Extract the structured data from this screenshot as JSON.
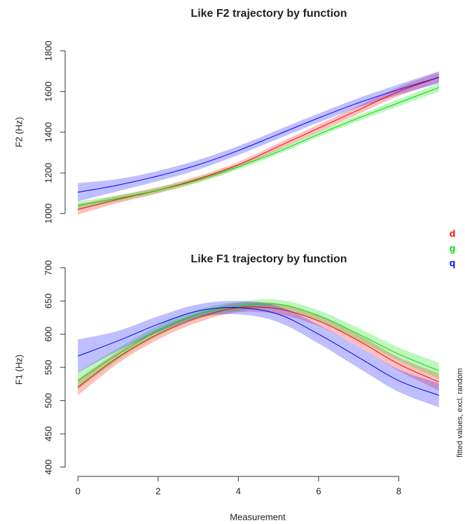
{
  "chart_data": [
    {
      "type": "line",
      "title": "Like F2 trajectory by function",
      "ylabel": "F2 (Hz)",
      "x": [
        0,
        1,
        2,
        3,
        4,
        5,
        6,
        7,
        8,
        9
      ],
      "xlim": [
        -0.37,
        9.37
      ],
      "ylim": [
        970,
        1830
      ],
      "yticks": [
        1000,
        1200,
        1400,
        1600,
        1800
      ],
      "legend": "right",
      "series": [
        {
          "name": "d",
          "color": "#ff0000",
          "values": [
            1020,
            1070,
            1115,
            1170,
            1240,
            1330,
            1420,
            1510,
            1600,
            1670
          ],
          "lower": [
            995,
            1052,
            1100,
            1156,
            1226,
            1314,
            1402,
            1490,
            1578,
            1645
          ],
          "upper": [
            1045,
            1088,
            1130,
            1184,
            1254,
            1346,
            1438,
            1530,
            1622,
            1695
          ]
        },
        {
          "name": "g",
          "color": "#00dd00",
          "values": [
            1040,
            1075,
            1115,
            1165,
            1230,
            1305,
            1390,
            1470,
            1545,
            1620
          ],
          "lower": [
            1020,
            1060,
            1102,
            1152,
            1217,
            1292,
            1376,
            1455,
            1528,
            1600
          ],
          "upper": [
            1060,
            1090,
            1128,
            1178,
            1243,
            1318,
            1404,
            1485,
            1562,
            1640
          ]
        },
        {
          "name": "q",
          "color": "#0000ff",
          "values": [
            1105,
            1140,
            1185,
            1240,
            1310,
            1390,
            1470,
            1545,
            1610,
            1670
          ],
          "lower": [
            1060,
            1110,
            1160,
            1216,
            1288,
            1368,
            1448,
            1522,
            1585,
            1640
          ],
          "upper": [
            1150,
            1170,
            1210,
            1264,
            1332,
            1412,
            1492,
            1568,
            1635,
            1700
          ]
        }
      ]
    },
    {
      "type": "line",
      "title": "Like F1 trajectory by function",
      "ylabel": "F1 (Hz)",
      "xlabel": "Measurement",
      "annotation": "fitted values, excl. random",
      "x": [
        0,
        1,
        2,
        3,
        4,
        5,
        6,
        7,
        8,
        9
      ],
      "xlim": [
        -0.37,
        9.37
      ],
      "xticks": [
        0,
        2,
        4,
        6,
        8
      ],
      "ylim": [
        388,
        705
      ],
      "yticks": [
        400,
        450,
        500,
        550,
        600,
        650,
        700
      ],
      "series": [
        {
          "color": "#ff0000",
          "values": [
            520,
            565,
            600,
            625,
            640,
            638,
            620,
            590,
            555,
            528
          ],
          "lower": [
            508,
            556,
            592,
            618,
            633,
            630,
            612,
            581,
            545,
            515
          ],
          "upper": [
            532,
            574,
            608,
            632,
            647,
            646,
            628,
            599,
            565,
            541
          ]
        },
        {
          "color": "#00dd00",
          "values": [
            530,
            570,
            605,
            630,
            642,
            645,
            628,
            600,
            570,
            545
          ],
          "lower": [
            517,
            561,
            597,
            623,
            635,
            638,
            620,
            591,
            560,
            533
          ],
          "upper": [
            543,
            579,
            613,
            637,
            649,
            652,
            636,
            609,
            580,
            557
          ]
        },
        {
          "color": "#0000ff",
          "values": [
            567,
            590,
            615,
            635,
            640,
            630,
            600,
            565,
            530,
            508
          ],
          "lower": [
            542,
            575,
            603,
            625,
            630,
            618,
            586,
            549,
            513,
            490
          ],
          "upper": [
            592,
            605,
            627,
            645,
            650,
            642,
            614,
            581,
            547,
            526
          ]
        }
      ]
    }
  ]
}
